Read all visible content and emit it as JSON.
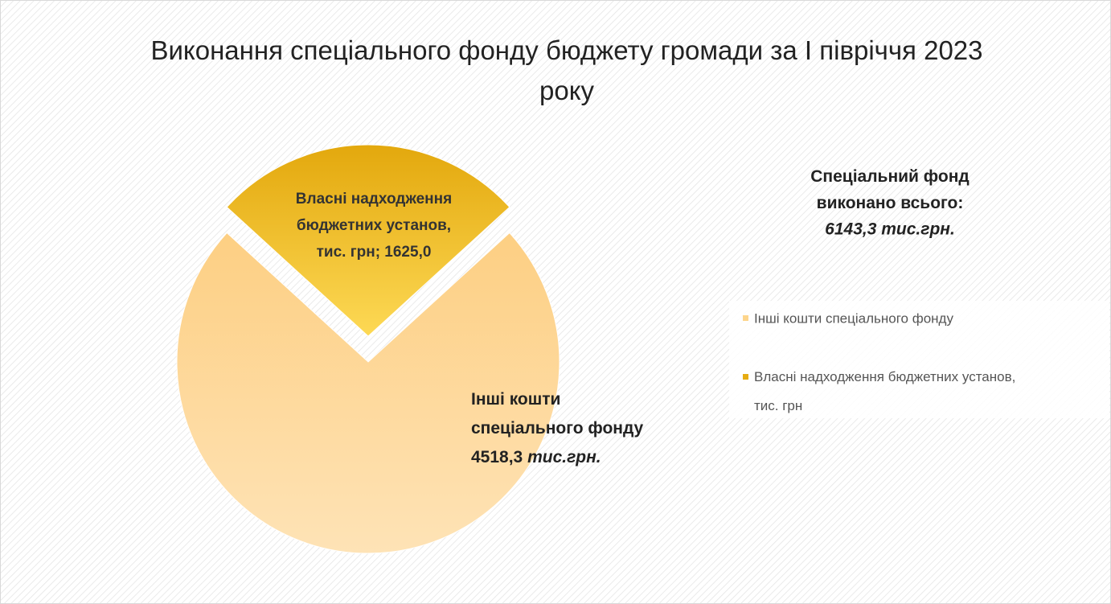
{
  "chart_data": {
    "type": "pie",
    "title": "Виконання спеціального фонду бюджету громади за І півріччя 2023 року",
    "annotation": "Спеціальний фонд виконано всього:",
    "annotation_value": "6143,3 тис.грн.",
    "categories": [
      "Інші кошти спеціального фонду",
      "Власні надходження бюджетних установ, тис. грн"
    ],
    "values": [
      4518.3,
      1625.0
    ],
    "value_labels": [
      "4518,3",
      "1625,0"
    ],
    "label_unit": "тис.грн.",
    "label_separator": "; ",
    "colors": [
      "#fdd58c",
      "#e6ac12"
    ],
    "legend": "right"
  }
}
